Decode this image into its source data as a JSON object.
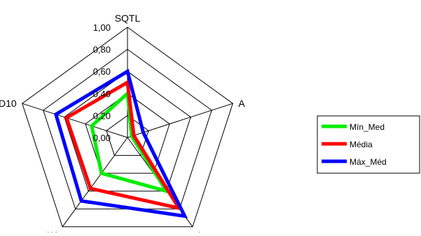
{
  "chart_data": {
    "type": "radar",
    "axes": [
      "SQTL",
      "A",
      "L",
      "W",
      "D10"
    ],
    "rlim": [
      0,
      1
    ],
    "ticks": [
      "0,00",
      "0,20",
      "0,40",
      "0,60",
      "0,80",
      "1,00"
    ],
    "series": [
      {
        "name": "Mín_Med",
        "color": "#00ee00",
        "values": [
          0.4,
          0.04,
          0.6,
          0.4,
          0.34
        ]
      },
      {
        "name": "Média",
        "color": "#ff0000",
        "values": [
          0.5,
          0.06,
          0.79,
          0.57,
          0.58
        ]
      },
      {
        "name": "Máx_Méd",
        "color": "#0000ff",
        "values": [
          0.6,
          0.15,
          0.88,
          0.71,
          0.68
        ]
      }
    ],
    "legend_position": "right"
  }
}
